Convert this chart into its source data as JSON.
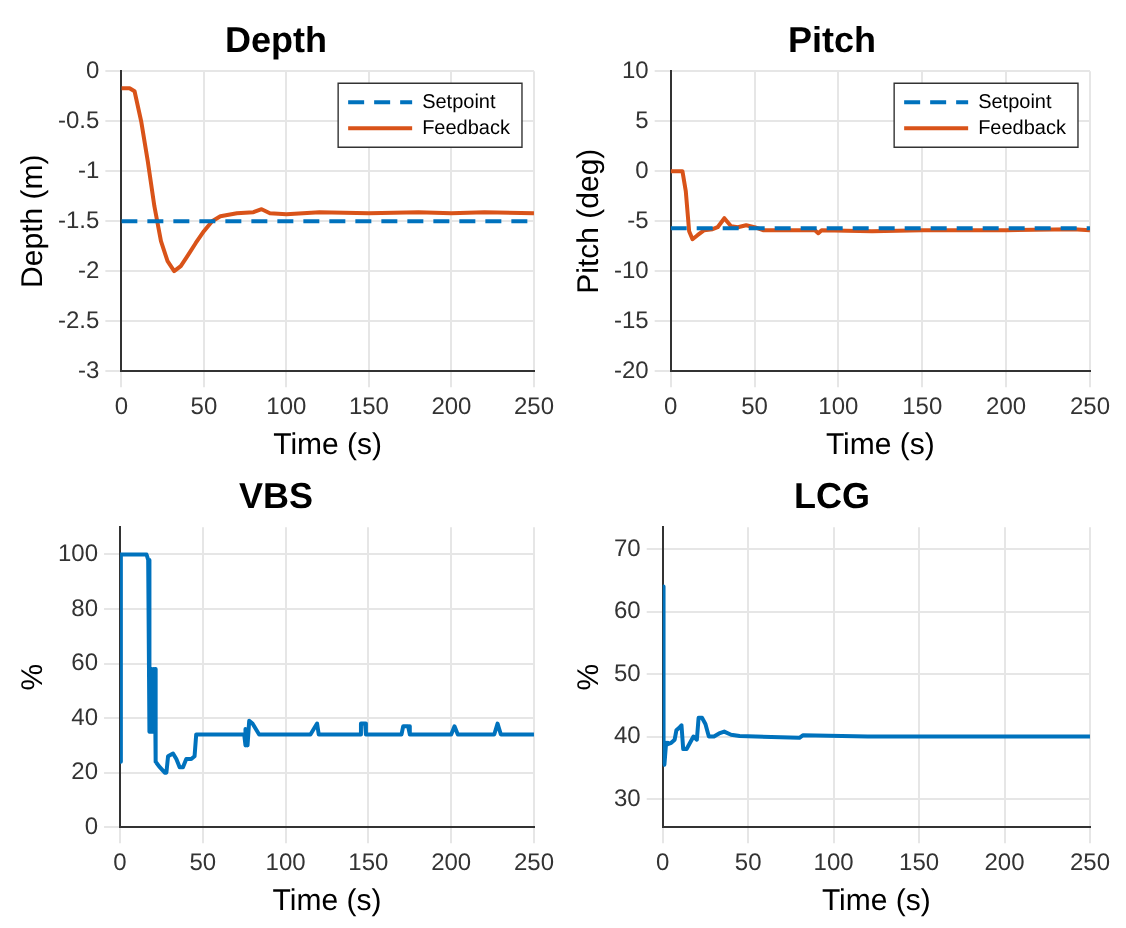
{
  "chart_data": [
    {
      "type": "line",
      "title": "Depth",
      "xlabel": "Time (s)",
      "ylabel": "Depth (m)",
      "xlim": [
        0,
        250
      ],
      "xticks": [
        0,
        50,
        100,
        150,
        200,
        250
      ],
      "ylim": [
        -3,
        0
      ],
      "yticks": [
        -3,
        -2.5,
        -2,
        -1.5,
        -1,
        -0.5,
        0
      ],
      "grid": true,
      "legend": "top right",
      "marker": "none",
      "series": [
        {
          "name": "Setpoint",
          "color": "#0072bd",
          "line_style": "dashed",
          "x": [
            0,
            250
          ],
          "values": [
            -1.5,
            -1.5
          ]
        },
        {
          "name": "Feedback",
          "color": "#d95319",
          "line_style": "solid",
          "x": [
            0,
            5,
            8,
            12,
            16,
            20,
            24,
            28,
            32,
            36,
            40,
            45,
            50,
            55,
            60,
            70,
            80,
            85,
            90,
            100,
            120,
            150,
            180,
            200,
            220,
            250
          ],
          "values": [
            -0.17,
            -0.17,
            -0.2,
            -0.5,
            -0.9,
            -1.35,
            -1.7,
            -1.9,
            -2.0,
            -1.95,
            -1.85,
            -1.72,
            -1.6,
            -1.5,
            -1.45,
            -1.42,
            -1.41,
            -1.38,
            -1.42,
            -1.43,
            -1.41,
            -1.42,
            -1.41,
            -1.42,
            -1.41,
            -1.42
          ]
        }
      ]
    },
    {
      "type": "line",
      "title": "Pitch",
      "xlabel": "Time (s)",
      "ylabel": "Pitch (deg)",
      "xlim": [
        0,
        250
      ],
      "xticks": [
        0,
        50,
        100,
        150,
        200,
        250
      ],
      "ylim": [
        -20,
        10
      ],
      "yticks": [
        -20,
        -15,
        -10,
        -5,
        0,
        5,
        10
      ],
      "grid": true,
      "legend": "top right",
      "marker": "none",
      "series": [
        {
          "name": "Setpoint",
          "color": "#0072bd",
          "line_style": "dashed",
          "x": [
            0,
            250
          ],
          "values": [
            -5.7,
            -5.7
          ]
        },
        {
          "name": "Feedback",
          "color": "#d95319",
          "line_style": "solid",
          "x": [
            0,
            7,
            9,
            11,
            13,
            16,
            20,
            25,
            28,
            32,
            36,
            40,
            45,
            50,
            55,
            70,
            86,
            88,
            90,
            120,
            150,
            200,
            240,
            250
          ],
          "values": [
            0,
            0,
            -2,
            -6,
            -6.8,
            -6.4,
            -5.9,
            -5.8,
            -5.6,
            -4.7,
            -5.5,
            -5.6,
            -5.4,
            -5.6,
            -5.9,
            -5.9,
            -5.9,
            -6.2,
            -5.9,
            -6,
            -5.9,
            -5.9,
            -5.8,
            -5.9
          ]
        }
      ]
    },
    {
      "type": "line",
      "title": "VBS",
      "xlabel": "Time (s)",
      "ylabel": "%",
      "xlim": [
        0,
        250
      ],
      "xticks": [
        0,
        50,
        100,
        150,
        200,
        250
      ],
      "ylim": [
        0,
        110
      ],
      "yticks": [
        0,
        20,
        40,
        60,
        80,
        100
      ],
      "grid": true,
      "marker": "none",
      "line_style": "solid",
      "series": [
        {
          "color": "#0072bd",
          "x": [
            0,
            0.5,
            16,
            17,
            17.5,
            18,
            18.5,
            19,
            19.5,
            20,
            20.5,
            21,
            21.5,
            24,
            27,
            28,
            29,
            32,
            34,
            36,
            38,
            40,
            43,
            45,
            46,
            75,
            75.5,
            76,
            77,
            78,
            80,
            82,
            84,
            115,
            117,
            119,
            120,
            145,
            145.5,
            148,
            148.5,
            150,
            170,
            171,
            174,
            175,
            200,
            202,
            204,
            226,
            228,
            230,
            250
          ],
          "values": [
            24,
            100,
            100,
            98,
            35,
            58,
            35,
            58,
            35,
            58,
            35,
            58,
            24,
            22,
            20,
            20,
            26,
            27,
            25,
            22,
            22,
            25,
            25,
            26,
            34,
            34,
            30,
            36,
            30,
            39,
            38,
            36,
            34,
            34,
            36,
            38,
            34,
            34,
            38,
            38,
            34,
            34,
            34,
            37,
            37,
            34,
            34,
            37,
            34,
            34,
            38,
            34,
            34
          ]
        }
      ]
    },
    {
      "type": "line",
      "title": "LCG",
      "xlabel": "Time (s)",
      "ylabel": "%",
      "xlim": [
        0,
        250
      ],
      "xticks": [
        0,
        50,
        100,
        150,
        200,
        250
      ],
      "ylim": [
        25.5,
        73.5
      ],
      "yticks": [
        30,
        40,
        50,
        60,
        70
      ],
      "grid": true,
      "marker": "none",
      "line_style": "solid",
      "series": [
        {
          "color": "#0072bd",
          "x": [
            0,
            0.5,
            1,
            2,
            3,
            5,
            7,
            8,
            10,
            11,
            12,
            14,
            16,
            18,
            20,
            21,
            23,
            25,
            27,
            30,
            33,
            36,
            40,
            45,
            80,
            82,
            120,
            250
          ],
          "values": [
            64,
            36,
            35.5,
            39,
            38.8,
            39,
            39.5,
            41,
            41.5,
            41.8,
            38,
            38,
            39,
            40,
            39.5,
            43,
            43,
            42,
            40,
            40,
            40.5,
            40.8,
            40.3,
            40.1,
            39.8,
            40.2,
            40,
            40
          ]
        }
      ]
    }
  ]
}
